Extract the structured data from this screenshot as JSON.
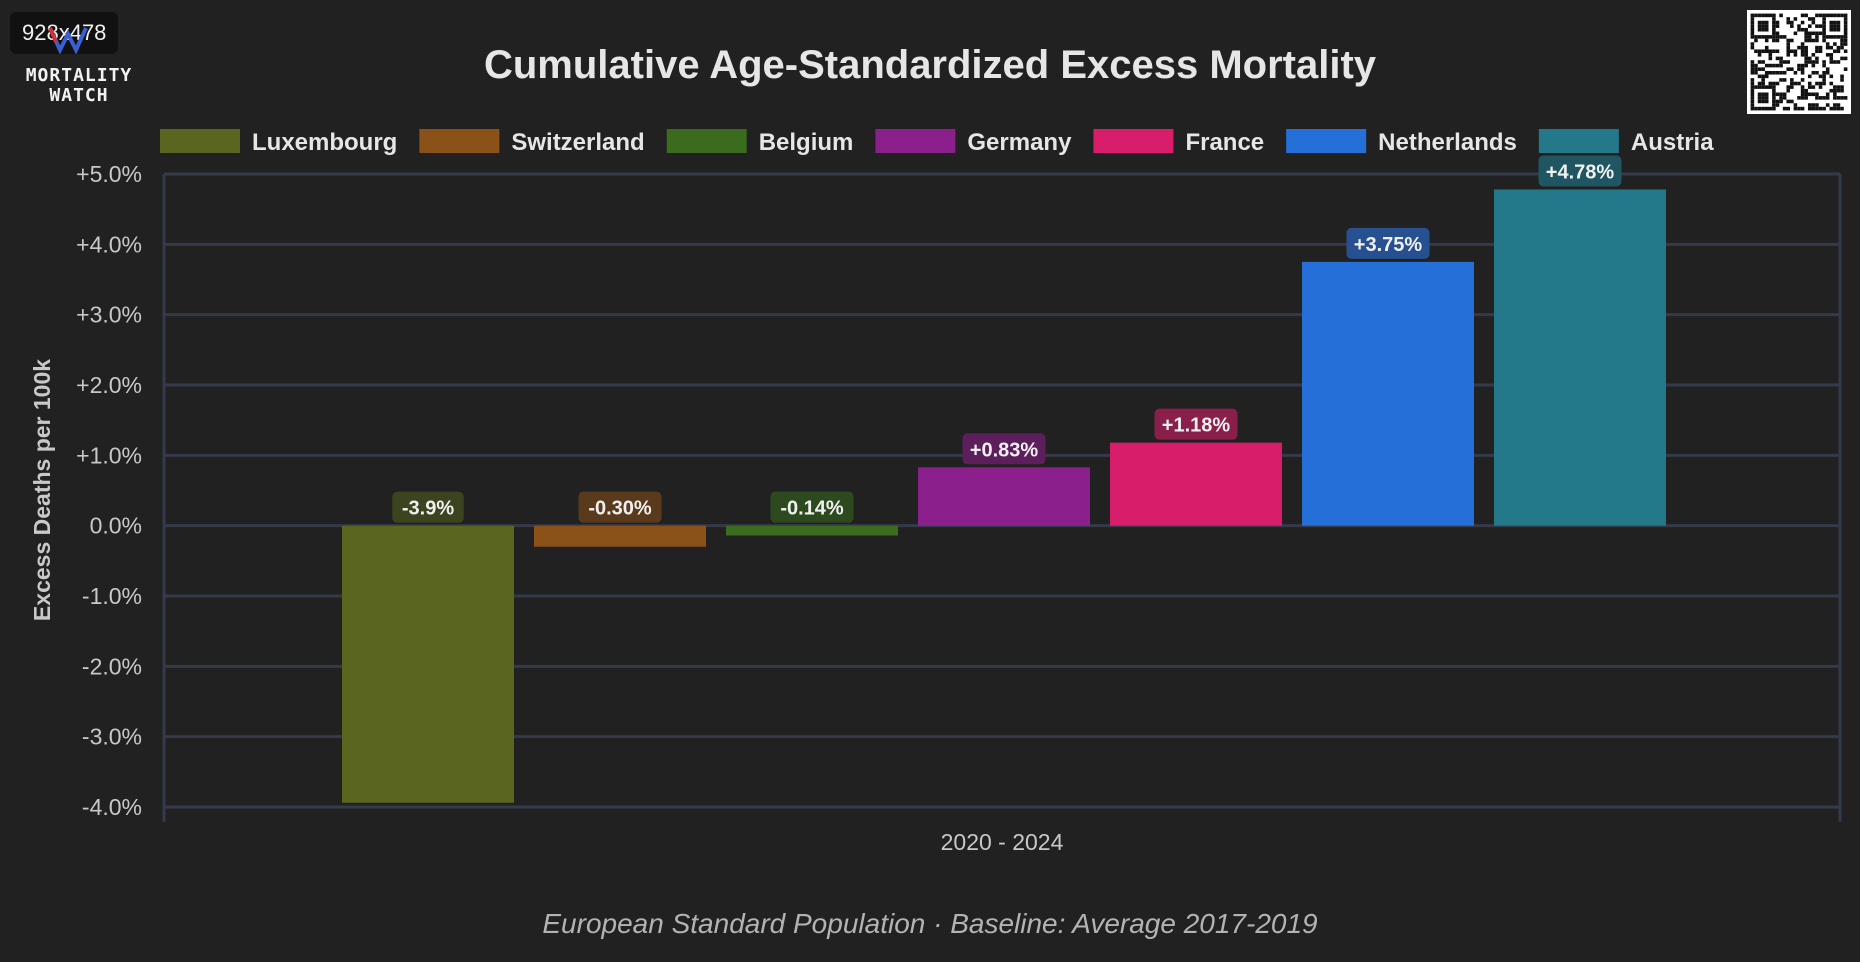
{
  "badge": "928x478",
  "logo": {
    "line1": "MORTALITY",
    "line2": "WATCH",
    "icon": "mortality-watch-logo-icon"
  },
  "qr": {
    "icon": "qr-code-icon"
  },
  "chart_data": {
    "type": "bar",
    "title": "Cumulative Age-Standardized Excess Mortality",
    "subtitle": "European Standard Population · Baseline: Average 2017-2019",
    "ylabel": "Excess Deaths per 100k",
    "xlabel": "",
    "x_tick_labels": [
      "2020 - 2024"
    ],
    "ylim": [
      -4.0,
      5.0
    ],
    "y_ticks": [
      5,
      4,
      3,
      2,
      1,
      0,
      -1,
      -2,
      -3,
      -4
    ],
    "y_tick_labels": [
      "+5.0%",
      "+4.0%",
      "+3.0%",
      "+2.0%",
      "+1.0%",
      "0.0%",
      "-1.0%",
      "-2.0%",
      "-3.0%",
      "-4.0%"
    ],
    "grid": true,
    "legend_position": "top",
    "series": [
      {
        "name": "Luxembourg",
        "value": -3.94,
        "label": "-3.9%",
        "color": "#5a6620",
        "label_bg": "#3c431f"
      },
      {
        "name": "Switzerland",
        "value": -0.3,
        "label": "-0.30%",
        "color": "#8a5218",
        "label_bg": "#5a3a1c"
      },
      {
        "name": "Belgium",
        "value": -0.14,
        "label": "-0.14%",
        "color": "#3b6b1c",
        "label_bg": "#2c4a1e"
      },
      {
        "name": "Germany",
        "value": 0.83,
        "label": "+0.83%",
        "color": "#8b1f8b",
        "label_bg": "#5c1f5c"
      },
      {
        "name": "France",
        "value": 1.18,
        "label": "+1.18%",
        "color": "#d81e6b",
        "label_bg": "#8a1f4c"
      },
      {
        "name": "Netherlands",
        "value": 3.75,
        "label": "+3.75%",
        "color": "#2470d8",
        "label_bg": "#26508f"
      },
      {
        "name": "Austria",
        "value": 4.78,
        "label": "+4.78%",
        "color": "#23788a",
        "label_bg": "#1f5662"
      }
    ]
  }
}
